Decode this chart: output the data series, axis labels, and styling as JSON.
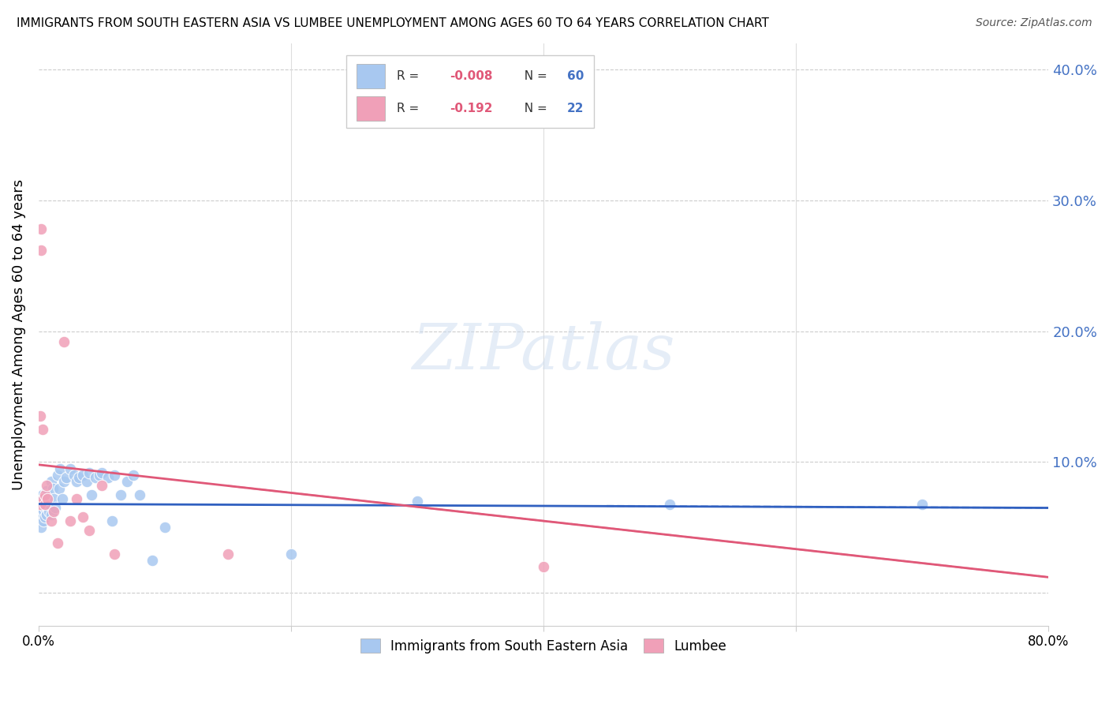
{
  "title": "IMMIGRANTS FROM SOUTH EASTERN ASIA VS LUMBEE UNEMPLOYMENT AMONG AGES 60 TO 64 YEARS CORRELATION CHART",
  "source": "Source: ZipAtlas.com",
  "ylabel": "Unemployment Among Ages 60 to 64 years",
  "xlim": [
    0.0,
    0.8
  ],
  "ylim": [
    -0.025,
    0.42
  ],
  "yticks": [
    0.0,
    0.1,
    0.2,
    0.3,
    0.4
  ],
  "ytick_labels": [
    "",
    "10.0%",
    "20.0%",
    "30.0%",
    "40.0%"
  ],
  "xticks": [
    0.0,
    0.2,
    0.4,
    0.6,
    0.8
  ],
  "xtick_labels": [
    "0.0%",
    "",
    "",
    "",
    "80.0%"
  ],
  "R_blue": -0.008,
  "N_blue": 60,
  "R_pink": -0.192,
  "N_pink": 22,
  "blue_color": "#a8c8f0",
  "pink_color": "#f0a0b8",
  "blue_line_color": "#3060c0",
  "pink_line_color": "#e05878",
  "axis_color": "#4472c4",
  "background_color": "#ffffff",
  "legend_label_blue": "Immigrants from South Eastern Asia",
  "legend_label_pink": "Lumbee",
  "blue_scatter_x": [
    0.001,
    0.001,
    0.001,
    0.002,
    0.002,
    0.002,
    0.002,
    0.003,
    0.003,
    0.003,
    0.003,
    0.004,
    0.004,
    0.004,
    0.005,
    0.005,
    0.005,
    0.006,
    0.006,
    0.006,
    0.007,
    0.007,
    0.008,
    0.008,
    0.009,
    0.01,
    0.01,
    0.011,
    0.012,
    0.013,
    0.015,
    0.016,
    0.017,
    0.019,
    0.02,
    0.022,
    0.025,
    0.028,
    0.03,
    0.032,
    0.035,
    0.038,
    0.04,
    0.042,
    0.045,
    0.048,
    0.05,
    0.055,
    0.058,
    0.06,
    0.065,
    0.07,
    0.075,
    0.08,
    0.09,
    0.1,
    0.2,
    0.3,
    0.5,
    0.7
  ],
  "blue_scatter_y": [
    0.065,
    0.06,
    0.055,
    0.07,
    0.06,
    0.055,
    0.05,
    0.075,
    0.068,
    0.062,
    0.058,
    0.072,
    0.063,
    0.055,
    0.07,
    0.065,
    0.058,
    0.078,
    0.068,
    0.06,
    0.075,
    0.065,
    0.072,
    0.062,
    0.068,
    0.085,
    0.06,
    0.08,
    0.072,
    0.065,
    0.09,
    0.08,
    0.095,
    0.072,
    0.085,
    0.088,
    0.095,
    0.09,
    0.085,
    0.088,
    0.09,
    0.085,
    0.092,
    0.075,
    0.088,
    0.09,
    0.092,
    0.088,
    0.055,
    0.09,
    0.075,
    0.085,
    0.09,
    0.075,
    0.025,
    0.05,
    0.03,
    0.07,
    0.068,
    0.068
  ],
  "pink_scatter_x": [
    0.001,
    0.001,
    0.002,
    0.002,
    0.003,
    0.004,
    0.005,
    0.005,
    0.006,
    0.007,
    0.01,
    0.012,
    0.015,
    0.02,
    0.025,
    0.03,
    0.035,
    0.04,
    0.05,
    0.06,
    0.15,
    0.4
  ],
  "pink_scatter_y": [
    0.135,
    0.068,
    0.278,
    0.262,
    0.125,
    0.072,
    0.068,
    0.075,
    0.082,
    0.072,
    0.055,
    0.062,
    0.038,
    0.192,
    0.055,
    0.072,
    0.058,
    0.048,
    0.082,
    0.03,
    0.03,
    0.02
  ],
  "blue_trend_x0": 0.0,
  "blue_trend_x1": 0.8,
  "blue_trend_y0": 0.068,
  "blue_trend_y1": 0.065,
  "pink_trend_x0": 0.0,
  "pink_trend_x1": 0.8,
  "pink_trend_y0": 0.098,
  "pink_trend_y1": 0.012
}
